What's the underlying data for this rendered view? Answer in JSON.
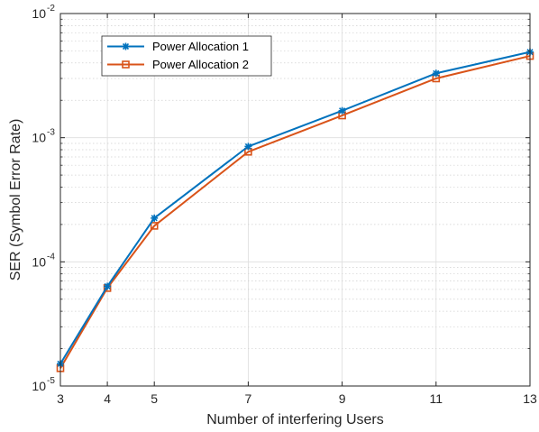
{
  "chart_data": {
    "type": "line",
    "xlabel": "Number of interfering Users",
    "ylabel": "SER (Symbol Error Rate)",
    "x": [
      3,
      4,
      5,
      7,
      9,
      11,
      13
    ],
    "xlim": [
      3,
      13
    ],
    "ylim": [
      1e-05,
      0.01
    ],
    "yscale": "log",
    "grid": true,
    "minor_grid": true,
    "legend_position": "top-left",
    "x_ticks": [
      "3",
      "4",
      "5",
      "7",
      "9",
      "11",
      "13"
    ],
    "y_ticks": [
      {
        "value": 1e-05,
        "base": "10",
        "exp": "-5"
      },
      {
        "value": 0.0001,
        "base": "10",
        "exp": "-4"
      },
      {
        "value": 0.001,
        "base": "10",
        "exp": "-3"
      },
      {
        "value": 0.01,
        "base": "10",
        "exp": "-2"
      }
    ],
    "series": [
      {
        "name": "Power Allocation 1",
        "color": "#0072BD",
        "marker": "asterisk",
        "values": [
          1.51e-05,
          6.35e-05,
          0.000225,
          0.00085,
          0.00165,
          0.0033,
          0.0049
        ]
      },
      {
        "name": "Power Allocation 2",
        "color": "#D95319",
        "marker": "square",
        "values": [
          1.39e-05,
          6.15e-05,
          0.000195,
          0.00077,
          0.00151,
          0.003,
          0.00455
        ]
      }
    ]
  }
}
